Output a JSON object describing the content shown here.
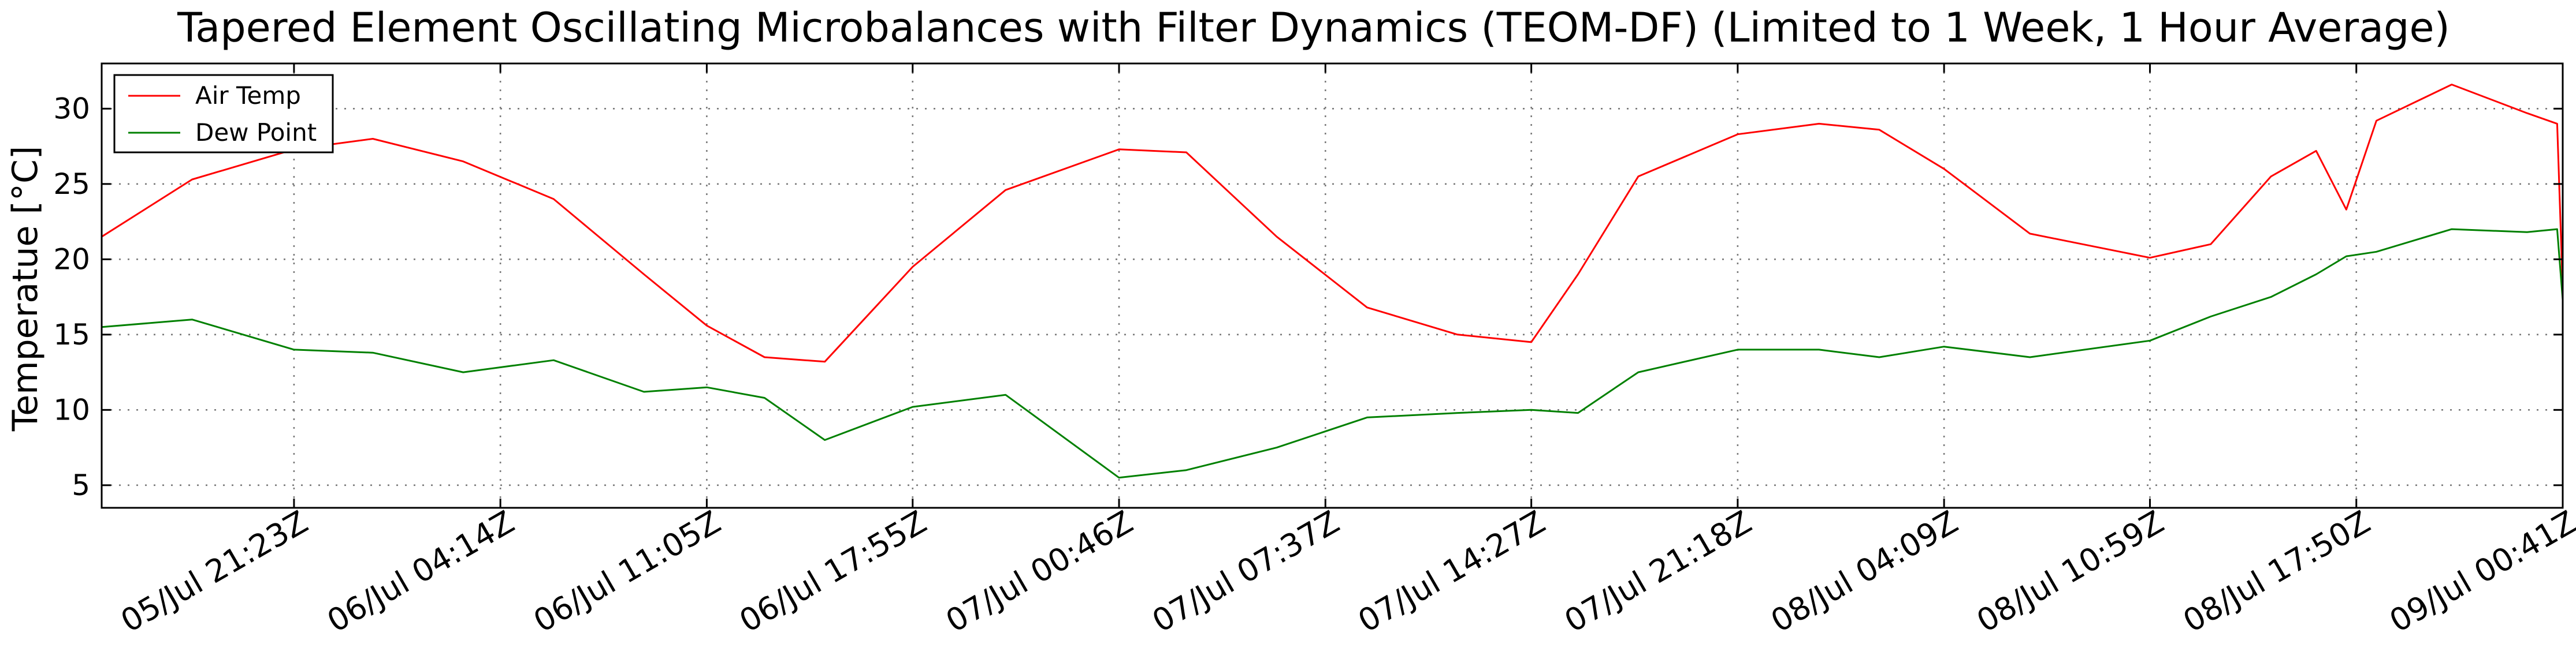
{
  "chart_data": {
    "type": "line",
    "title": "Tapered Element Oscillating Microbalances with Filter Dynamics (TEOM-DF) (Limited to 1 Week, 1 Hour Average)",
    "xlabel": "",
    "ylabel": "Temperatue [°C]",
    "xlim": [
      "05/Jul 15:00Z",
      "09/Jul 00:41Z"
    ],
    "ylim": [
      3.5,
      33
    ],
    "grid": true,
    "legend_position": "top-left",
    "x_ticks": [
      "05/Jul 21:23Z",
      "06/Jul 04:14Z",
      "06/Jul 11:05Z",
      "06/Jul 17:55Z",
      "07/Jul 00:46Z",
      "07/Jul 07:37Z",
      "07/Jul 14:27Z",
      "07/Jul 21:18Z",
      "08/Jul 04:09Z",
      "08/Jul 10:59Z",
      "08/Jul 17:50Z",
      "09/Jul 00:41Z"
    ],
    "y_ticks": [
      5,
      10,
      15,
      20,
      25,
      30
    ],
    "x": [
      "05/Jul 15:00Z",
      "05/Jul 18:00Z",
      "05/Jul 21:23Z",
      "06/Jul 00:00Z",
      "06/Jul 03:00Z",
      "06/Jul 06:00Z",
      "06/Jul 09:00Z",
      "06/Jul 11:05Z",
      "06/Jul 13:00Z",
      "06/Jul 15:00Z",
      "06/Jul 17:55Z",
      "06/Jul 21:00Z",
      "07/Jul 00:46Z",
      "07/Jul 03:00Z",
      "07/Jul 06:00Z",
      "07/Jul 09:00Z",
      "07/Jul 12:00Z",
      "07/Jul 14:27Z",
      "07/Jul 16:00Z",
      "07/Jul 18:00Z",
      "07/Jul 21:18Z",
      "08/Jul 00:00Z",
      "08/Jul 02:00Z",
      "08/Jul 04:09Z",
      "08/Jul 07:00Z",
      "08/Jul 10:59Z",
      "08/Jul 13:00Z",
      "08/Jul 15:00Z",
      "08/Jul 16:30Z",
      "08/Jul 17:30Z",
      "08/Jul 18:30Z",
      "08/Jul 21:00Z",
      "08/Jul 23:30Z",
      "09/Jul 00:30Z",
      "09/Jul 00:41Z"
    ],
    "series": [
      {
        "name": "Air Temp",
        "color": "#ff0000",
        "values": [
          21.5,
          25.3,
          27.3,
          28.0,
          26.5,
          24.0,
          19.0,
          15.6,
          13.5,
          13.2,
          19.5,
          24.6,
          27.3,
          27.1,
          21.5,
          16.8,
          15.0,
          14.5,
          19.0,
          25.5,
          28.3,
          29.0,
          28.6,
          26.0,
          21.7,
          20.1,
          21.0,
          25.5,
          27.2,
          23.3,
          29.2,
          31.6,
          29.7,
          29.0,
          18.0
        ]
      },
      {
        "name": "Dew Point",
        "color": "#008000",
        "values": [
          15.5,
          16.0,
          14.0,
          13.8,
          12.5,
          13.3,
          11.2,
          11.5,
          10.8,
          8.0,
          10.2,
          11.0,
          5.5,
          6.0,
          7.5,
          9.5,
          9.8,
          10.0,
          9.8,
          12.5,
          14.0,
          14.0,
          13.5,
          14.2,
          13.5,
          14.6,
          16.2,
          17.5,
          19.0,
          20.2,
          20.5,
          22.0,
          21.8,
          22.0,
          17.3
        ]
      }
    ]
  }
}
